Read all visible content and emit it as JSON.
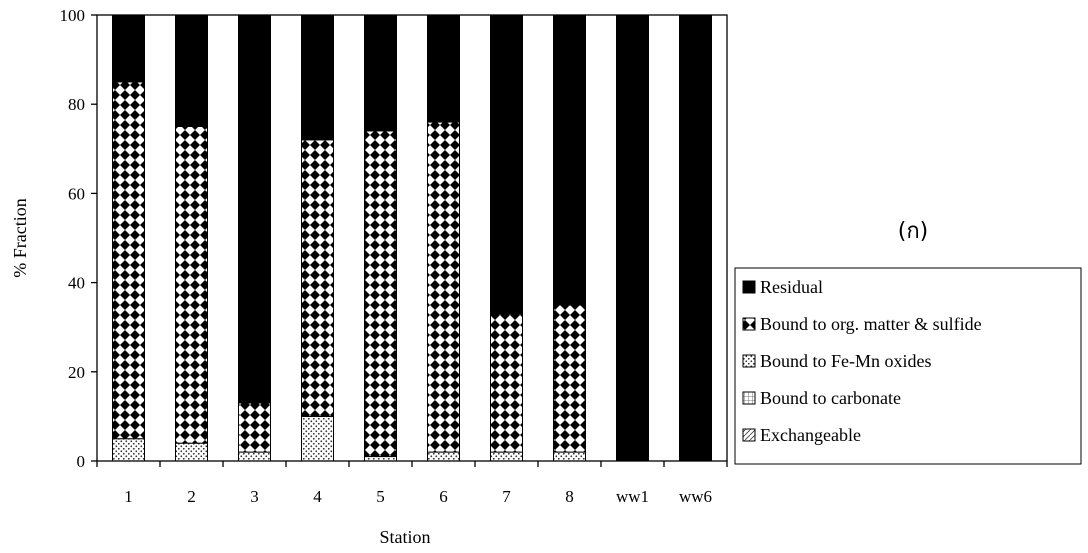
{
  "chart_data": {
    "type": "bar",
    "stacked": true,
    "categories": [
      "1",
      "2",
      "3",
      "4",
      "5",
      "6",
      "7",
      "8",
      "ww1",
      "ww6"
    ],
    "xlabel": "Station",
    "ylabel": "% Fraction",
    "ylim": [
      0,
      100
    ],
    "yticks": [
      "0",
      "20",
      "40",
      "60",
      "80",
      "100"
    ],
    "grid": false,
    "legend_position": "right",
    "panel_label": "(ก)",
    "series": [
      {
        "name": "Exchangeable",
        "values": [
          0,
          0,
          0,
          0,
          0,
          0,
          0,
          0,
          0,
          0
        ]
      },
      {
        "name": "Bound to carbonate",
        "values": [
          0,
          0,
          0,
          0,
          0,
          0,
          0,
          0,
          0,
          0
        ]
      },
      {
        "name": "Bound to Fe-Mn oxides",
        "values": [
          5,
          4,
          2,
          10,
          1,
          2,
          2,
          2,
          0,
          0
        ]
      },
      {
        "name": "Bound to org. matter & sulfide",
        "values": [
          80,
          71,
          11,
          62,
          73,
          74,
          31,
          33,
          0,
          0
        ]
      },
      {
        "name": "Residual",
        "values": [
          15,
          25,
          87,
          28,
          26,
          24,
          67,
          65,
          100,
          100
        ]
      }
    ],
    "legend_order": [
      "Residual",
      "Bound to org. matter & sulfide",
      "Bound to Fe-Mn oxides",
      "Bound to carbonate",
      "Exchangeable"
    ],
    "colors": {
      "Residual": "#000000",
      "Bound to org. matter & sulfide": "#000000",
      "Bound to Fe-Mn oxides": "#bdbdbd",
      "Bound to carbonate": "#ffffff",
      "Exchangeable": "#ffffff"
    }
  }
}
